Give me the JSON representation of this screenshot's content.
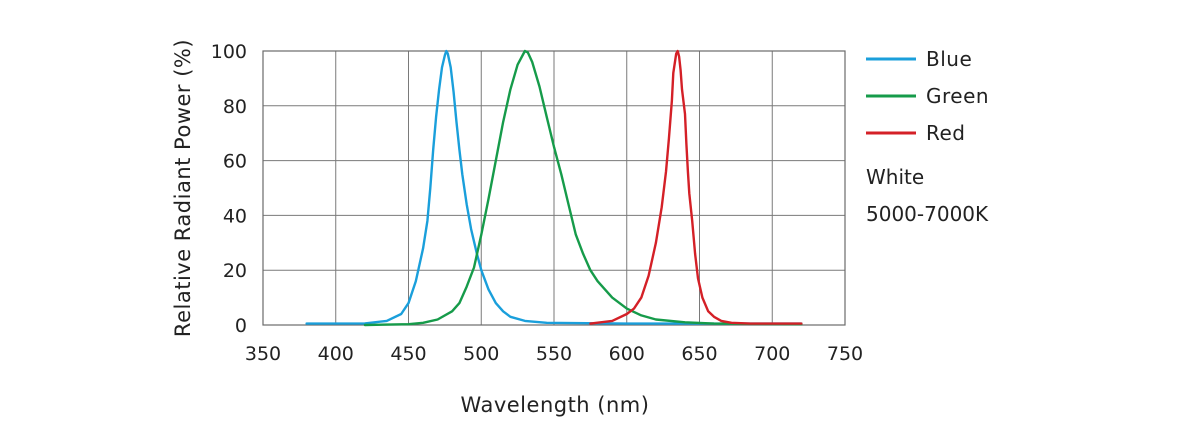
{
  "chart_data": {
    "type": "line",
    "title": "",
    "xlabel": "Wavelength (nm)",
    "ylabel": "Relative Radiant Power (%)",
    "xlim": [
      350,
      750
    ],
    "ylim": [
      0,
      100
    ],
    "xticks": [
      "350",
      "400",
      "450",
      "500",
      "550",
      "600",
      "650",
      "700",
      "750"
    ],
    "yticks": [
      "0",
      "20",
      "40",
      "60",
      "80",
      "100"
    ],
    "grid": true,
    "legend_position": "right",
    "series": [
      {
        "name": "Blue",
        "color": "#1a9fdb",
        "points": [
          [
            380,
            0.5
          ],
          [
            420,
            0.6
          ],
          [
            435,
            1.5
          ],
          [
            445,
            4
          ],
          [
            450,
            8
          ],
          [
            455,
            16
          ],
          [
            460,
            28
          ],
          [
            463,
            38
          ],
          [
            465,
            50
          ],
          [
            467,
            64
          ],
          [
            469,
            76
          ],
          [
            471,
            86
          ],
          [
            473,
            94
          ],
          [
            475,
            98.5
          ],
          [
            476,
            100
          ],
          [
            477,
            99
          ],
          [
            479,
            94
          ],
          [
            481,
            85
          ],
          [
            483,
            74
          ],
          [
            485,
            64
          ],
          [
            487,
            55
          ],
          [
            490,
            44
          ],
          [
            493,
            35
          ],
          [
            497,
            26
          ],
          [
            500,
            20
          ],
          [
            505,
            13
          ],
          [
            510,
            8
          ],
          [
            515,
            5
          ],
          [
            520,
            3
          ],
          [
            530,
            1.5
          ],
          [
            545,
            0.8
          ],
          [
            600,
            0.5
          ],
          [
            720,
            0.5
          ]
        ]
      },
      {
        "name": "Green",
        "color": "#169b4a",
        "points": [
          [
            420,
            0
          ],
          [
            450,
            0.3
          ],
          [
            460,
            0.8
          ],
          [
            470,
            2
          ],
          [
            480,
            5
          ],
          [
            485,
            8
          ],
          [
            490,
            14
          ],
          [
            495,
            21
          ],
          [
            500,
            33
          ],
          [
            505,
            46
          ],
          [
            510,
            60
          ],
          [
            515,
            74
          ],
          [
            520,
            86
          ],
          [
            525,
            95
          ],
          [
            530,
            100
          ],
          [
            532,
            99.5
          ],
          [
            535,
            96
          ],
          [
            540,
            87
          ],
          [
            545,
            76
          ],
          [
            550,
            65
          ],
          [
            555,
            55
          ],
          [
            560,
            44
          ],
          [
            565,
            33
          ],
          [
            570,
            26
          ],
          [
            575,
            20
          ],
          [
            580,
            16
          ],
          [
            590,
            10
          ],
          [
            600,
            6
          ],
          [
            610,
            3.5
          ],
          [
            620,
            2
          ],
          [
            640,
            1
          ],
          [
            660,
            0.5
          ],
          [
            720,
            0.3
          ]
        ]
      },
      {
        "name": "Red",
        "color": "#d42027",
        "points": [
          [
            575,
            0.5
          ],
          [
            590,
            1.5
          ],
          [
            600,
            4
          ],
          [
            605,
            6
          ],
          [
            610,
            10
          ],
          [
            615,
            18
          ],
          [
            620,
            30
          ],
          [
            624,
            43
          ],
          [
            627,
            56
          ],
          [
            629,
            68
          ],
          [
            631,
            82
          ],
          [
            632,
            92
          ],
          [
            634,
            99
          ],
          [
            635,
            100
          ],
          [
            636,
            98
          ],
          [
            637,
            93
          ],
          [
            638,
            86
          ],
          [
            640,
            77
          ],
          [
            641,
            66
          ],
          [
            642,
            56
          ],
          [
            643,
            48
          ],
          [
            645,
            38
          ],
          [
            647,
            26
          ],
          [
            649,
            17
          ],
          [
            652,
            10
          ],
          [
            656,
            5
          ],
          [
            660,
            3
          ],
          [
            665,
            1.5
          ],
          [
            672,
            0.8
          ],
          [
            685,
            0.5
          ],
          [
            720,
            0.5
          ]
        ]
      }
    ],
    "annotations": [
      "White",
      "5000-7000K"
    ]
  }
}
